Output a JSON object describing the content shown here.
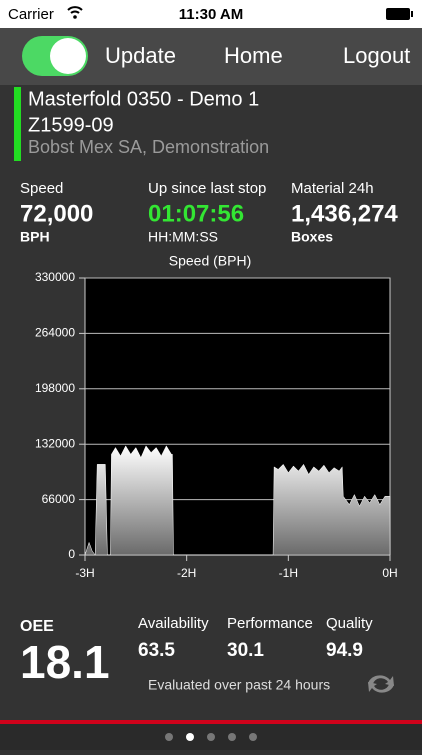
{
  "status_bar": {
    "carrier": "Carrier",
    "time": "11:30 AM"
  },
  "nav": {
    "items": [
      "Update",
      "Home",
      "Logout"
    ]
  },
  "machine": {
    "name": "Masterfold 0350 - Demo 1",
    "id": "Z1599-09",
    "customer": "Bobst Mex SA, Demonstration"
  },
  "stats": [
    {
      "label": "Speed",
      "value": "72,000",
      "unit": "BPH"
    },
    {
      "label": "Up since last stop",
      "value": "01:07:56",
      "unit": "HH:MM:SS"
    },
    {
      "label": "Material 24h",
      "value": "1,436,274",
      "unit": "Boxes"
    }
  ],
  "chart_data": {
    "type": "area",
    "title": "Speed (BPH)",
    "x": [
      -3.0,
      -2.96,
      -2.93,
      -2.9,
      -2.88,
      -2.8,
      -2.78,
      -2.75,
      -2.74,
      -2.7,
      -2.65,
      -2.6,
      -2.55,
      -2.5,
      -2.45,
      -2.4,
      -2.35,
      -2.3,
      -2.25,
      -2.2,
      -2.15,
      -2.14,
      -2.13,
      -1.15,
      -1.14,
      -1.1,
      -1.05,
      -1.0,
      -0.95,
      -0.9,
      -0.85,
      -0.8,
      -0.75,
      -0.7,
      -0.65,
      -0.6,
      -0.55,
      -0.5,
      -0.47,
      -0.46,
      -0.4,
      -0.35,
      -0.3,
      -0.25,
      -0.2,
      -0.15,
      -0.1,
      -0.05,
      0.0
    ],
    "series": [
      {
        "values": [
          0,
          15000,
          5000,
          0,
          108000,
          108000,
          0,
          0,
          120000,
          128000,
          118000,
          130000,
          120000,
          128000,
          116000,
          130000,
          122000,
          128000,
          118000,
          130000,
          120000,
          120000,
          0,
          0,
          105000,
          102000,
          108000,
          98000,
          106000,
          100000,
          108000,
          96000,
          105000,
          100000,
          107000,
          98000,
          104000,
          100000,
          105000,
          70000,
          60000,
          72000,
          58000,
          70000,
          62000,
          72000,
          60000,
          70000,
          70000
        ],
        "color": "#ffffff"
      }
    ],
    "xlim": [
      -3,
      0
    ],
    "ylim": [
      0,
      330000
    ],
    "xticks": [
      {
        "value": -3,
        "label": "-3H"
      },
      {
        "value": -2,
        "label": "-2H"
      },
      {
        "value": -1,
        "label": "-1H"
      },
      {
        "value": 0,
        "label": "0H"
      }
    ],
    "yticks": [
      0,
      66000,
      132000,
      198000,
      264000,
      330000
    ],
    "grid": true
  },
  "oee": {
    "label": "OEE",
    "value": "18.1",
    "metrics": [
      {
        "label": "Availability",
        "value": "63.5"
      },
      {
        "label": "Performance",
        "value": "30.1"
      },
      {
        "label": "Quality",
        "value": "94.9"
      }
    ],
    "note": "Evaluated over past 24 hours"
  }
}
